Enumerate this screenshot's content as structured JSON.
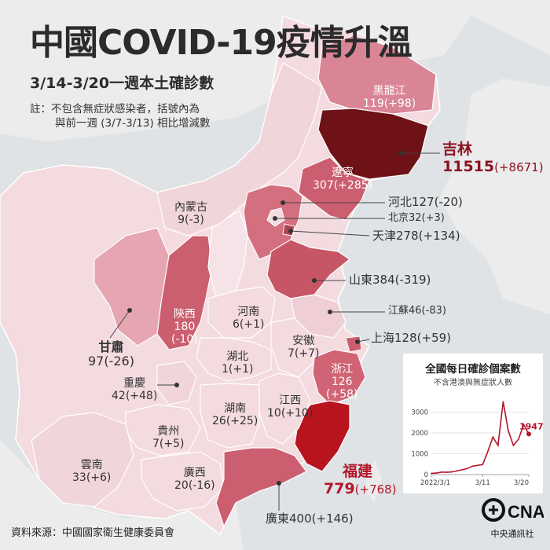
{
  "title": "中國COVID-19疫情升溫",
  "subtitle": "3/14-3/20一週本土確診數",
  "note": {
    "line1": "註：不包含無症狀感染者，括號內為",
    "line2": "與前一週 (3/7-3/13) 相比增減數"
  },
  "regions": {
    "heilongjiang": {
      "name": "黑龍江",
      "value": "119(+98)"
    },
    "jilin": {
      "name": "吉林",
      "value": "11515",
      "change": "(+8671)"
    },
    "liaoning": {
      "name": "遼寧",
      "value": "307(+285)"
    },
    "hebei": {
      "name": "河北",
      "value": "127(-20)"
    },
    "beijing": {
      "name": "北京",
      "value": "32(+3)"
    },
    "tianjin": {
      "name": "天津",
      "value": "278(+134)"
    },
    "shandong": {
      "name": "山東",
      "value": "384(-319)"
    },
    "jiangsu": {
      "name": "江蘇",
      "value": "46(-83)"
    },
    "shanghai": {
      "name": "上海",
      "value": "128(+59)"
    },
    "zhejiang": {
      "name": "浙江",
      "value": "126",
      "change": "(+58)"
    },
    "fujian": {
      "name": "福建",
      "value": "779",
      "change": "(+768)"
    },
    "guangdong": {
      "name": "廣東",
      "value": "400(+146)"
    },
    "neimenggu": {
      "name": "內蒙古",
      "value": "9(-3)"
    },
    "shaanxi": {
      "name": "陝西",
      "value": "180",
      "change": "(-10)"
    },
    "gansu": {
      "name": "甘肅",
      "value": "97(-26)"
    },
    "henan": {
      "name": "河南",
      "value": "6(+1)"
    },
    "anhui": {
      "name": "安徽",
      "value": "7(+7)"
    },
    "hubei": {
      "name": "湖北",
      "value": "1(+1)"
    },
    "chongqing": {
      "name": "重慶",
      "value": "42(+48)"
    },
    "jiangxi": {
      "name": "江西",
      "value": "10(+10)"
    },
    "hunan": {
      "name": "湖南",
      "value": "26(+25)"
    },
    "guizhou": {
      "name": "貴州",
      "value": "7(+5)"
    },
    "yunnan": {
      "name": "雲南",
      "value": "33(+6)"
    },
    "guangxi": {
      "name": "廣西",
      "value": "20(-16)"
    }
  },
  "source": "資料來源：中國國家衛生健康委員會",
  "logo": {
    "text": "CNA",
    "name": "中央通訊社"
  },
  "colors": {
    "sea": "#dfe3e6",
    "land_other": "#ededed",
    "china_light": "#f3dbe0",
    "china_mid": "#e6a6b1",
    "china_strong": "#cc5f6f",
    "jilin": "#6e1218",
    "fujian": "#b8141e",
    "accent_text": "#b3172a"
  },
  "chart_data": {
    "type": "line",
    "title": "全國每日確診個案數",
    "subtitle": "不含港澳與無症狀人數",
    "x_tick_labels": [
      "2022/3/1",
      "3/11",
      "3/20"
    ],
    "y_ticks": [
      0,
      1000,
      2000,
      3000
    ],
    "ylim": [
      0,
      4000
    ],
    "x": [
      "3/1",
      "3/2",
      "3/3",
      "3/4",
      "3/5",
      "3/6",
      "3/7",
      "3/8",
      "3/9",
      "3/10",
      "3/11",
      "3/12",
      "3/13",
      "3/14",
      "3/15",
      "3/16",
      "3/17",
      "3/18",
      "3/19",
      "3/20"
    ],
    "values": [
      60,
      70,
      120,
      110,
      130,
      175,
      230,
      290,
      400,
      440,
      480,
      1100,
      1800,
      1400,
      3500,
      2100,
      1400,
      1700,
      2400,
      1947
    ],
    "last_label": "1947",
    "color": "#b3172a"
  }
}
